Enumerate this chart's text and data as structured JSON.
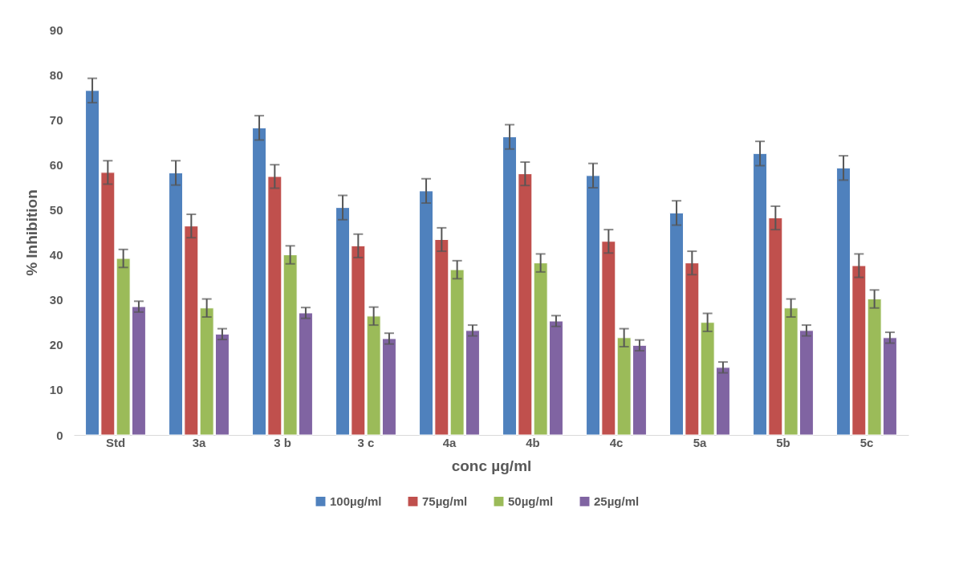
{
  "chart_data": {
    "type": "bar",
    "xlabel": "conc µg/ml",
    "ylabel": "% Inhibition",
    "categories": [
      "Std",
      "3a",
      "3 b",
      "3 c",
      "4a",
      "4b",
      "4c",
      "5a",
      "5b",
      "5c"
    ],
    "series": [
      {
        "name": "100µg/ml",
        "color": "#4f81bd",
        "values": [
          76.5,
          58.2,
          68.2,
          50.5,
          54.2,
          66.2,
          57.6,
          49.3,
          62.5,
          59.3
        ],
        "errors": [
          2.7,
          2.7,
          2.7,
          2.7,
          2.7,
          2.7,
          2.7,
          2.7,
          2.7,
          2.7
        ]
      },
      {
        "name": "75µg/ml",
        "color": "#c0504d",
        "values": [
          58.3,
          46.4,
          57.4,
          42,
          43.4,
          58,
          43,
          38.2,
          48.2,
          37.6
        ],
        "errors": [
          2.6,
          2.6,
          2.6,
          2.6,
          2.6,
          2.6,
          2.6,
          2.6,
          2.6,
          2.6
        ]
      },
      {
        "name": "50µg/ml",
        "color": "#9bbb59",
        "values": [
          39.2,
          28.2,
          40,
          26.4,
          36.7,
          38.2,
          21.6,
          25,
          28.2,
          30.2
        ],
        "errors": [
          2,
          2,
          2,
          2,
          2,
          2,
          2,
          2,
          2,
          2
        ]
      },
      {
        "name": "25µg/ml",
        "color": "#8064a2",
        "values": [
          28.5,
          22.4,
          27.1,
          21.4,
          23.2,
          25.3,
          19.9,
          15,
          23.2,
          21.6
        ],
        "errors": [
          1.2,
          1.2,
          1.2,
          1.2,
          1.2,
          1.2,
          1.2,
          1.2,
          1.2,
          1.2
        ]
      }
    ],
    "ylim": [
      0,
      90
    ],
    "yticks": [
      0,
      10,
      20,
      30,
      40,
      50,
      60,
      70,
      80,
      90
    ],
    "grid": false,
    "legend": "bottom"
  }
}
